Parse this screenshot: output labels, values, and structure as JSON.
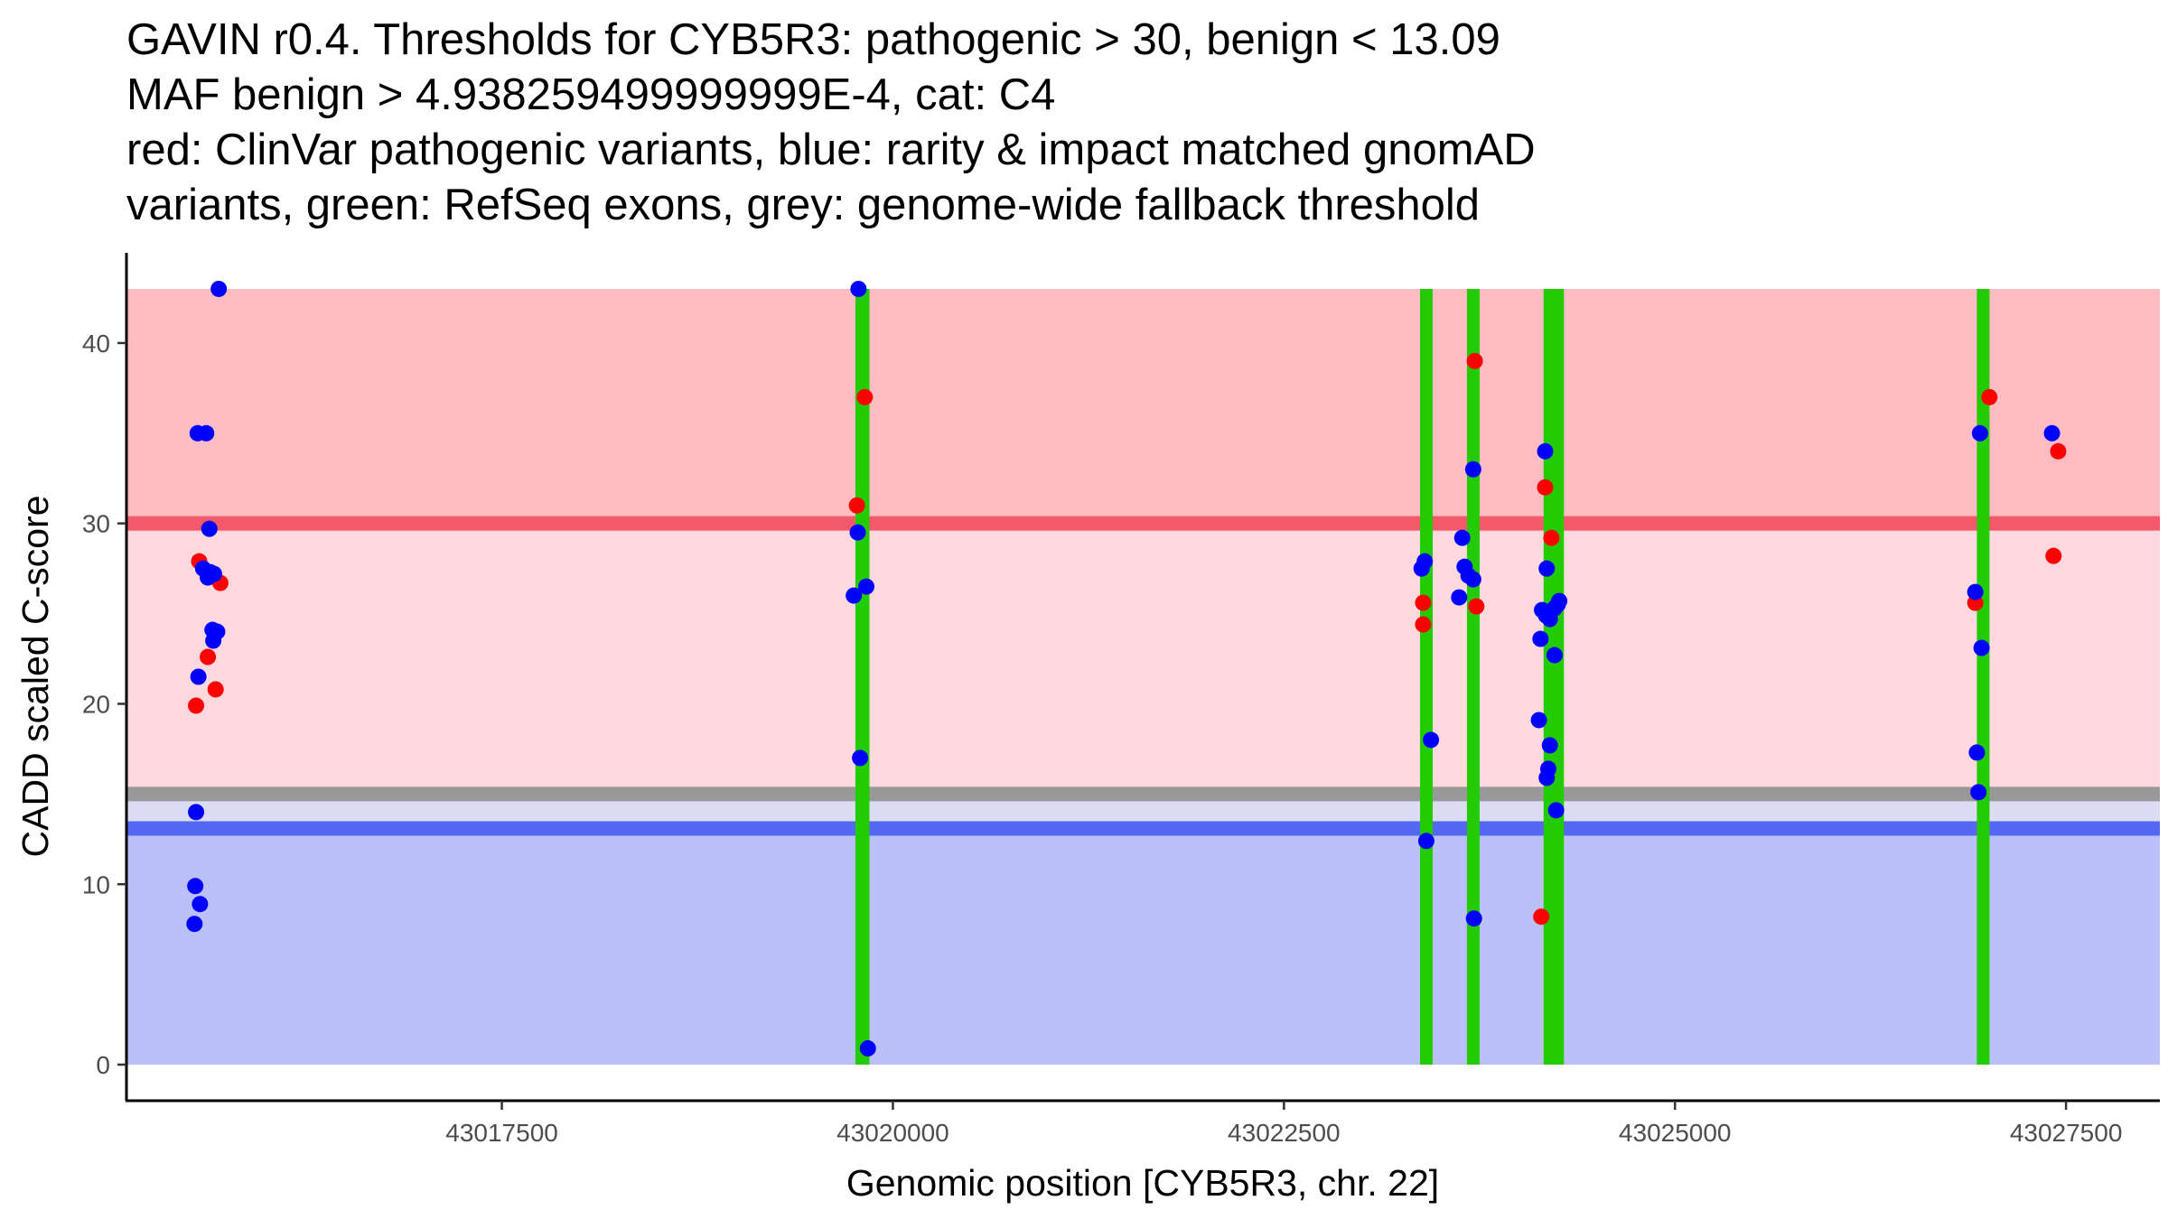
{
  "chart_data": {
    "type": "scatter",
    "title_lines": [
      "GAVIN r0.4. Thresholds for CYB5R3: pathogenic > 30, benign < 13.09",
      "MAF benign > 4.938259499999999E-4, cat: C4",
      "red: ClinVar pathogenic variants, blue: rarity & impact matched gnomAD",
      "variants, green: RefSeq exons, grey: genome-wide fallback threshold"
    ],
    "xlabel": "Genomic position [CYB5R3, chr. 22]",
    "ylabel": "CADD scaled C-score",
    "xlim": [
      43015100,
      43028100
    ],
    "ylim": [
      -2,
      45
    ],
    "x_ticks": [
      43017500,
      43020000,
      43022500,
      43025000,
      43027500
    ],
    "x_tick_labels": [
      "43017500",
      "43020000",
      "43022500",
      "43025000",
      "43027500"
    ],
    "y_ticks": [
      0,
      10,
      20,
      30,
      40
    ],
    "y_tick_labels": [
      "0",
      "10",
      "20",
      "30",
      "40"
    ],
    "thresholds": {
      "pathogenic": 30,
      "benign": 13.09,
      "genome_wide_fallback": 15
    },
    "bands": [
      {
        "name": "pathogenic-zone",
        "y0": 30,
        "y1": 43,
        "color": "#ffbcc2"
      },
      {
        "name": "intermediate-zone",
        "y0": 15,
        "y1": 30,
        "color": "#ffd9de"
      },
      {
        "name": "fallback-gap-zone",
        "y0": 13.09,
        "y1": 15,
        "color": "#dcdcf5"
      },
      {
        "name": "benign-zone",
        "y0": 0,
        "y1": 13.09,
        "color": "#bbc0fb"
      }
    ],
    "threshold_lines": [
      {
        "name": "pathogenic-threshold-line",
        "y": 30,
        "color": "#f4596a"
      },
      {
        "name": "fallback-threshold-line",
        "y": 15,
        "color": "#999999"
      },
      {
        "name": "benign-threshold-line",
        "y": 13.09,
        "color": "#5468f4"
      }
    ],
    "exons": [
      {
        "start": 43019760,
        "end": 43019850
      },
      {
        "start": 43023370,
        "end": 43023450
      },
      {
        "start": 43023670,
        "end": 43023750
      },
      {
        "start": 43024160,
        "end": 43024290
      },
      {
        "start": 43026930,
        "end": 43027010
      }
    ],
    "colors": {
      "clinvar": "#ff0000",
      "gnomad": "#0000ff",
      "exon": "#22cc00"
    },
    "series": [
      {
        "name": "ClinVar pathogenic",
        "x": [
          43015545,
          43015565,
          43015620,
          43015670,
          43015700,
          43019770,
          43019820,
          43023390,
          43023390,
          43023720,
          43023730,
          43024145,
          43024170,
          43024210,
          43026920,
          43027010,
          43027420,
          43027450
        ],
        "y": [
          19.9,
          27.9,
          22.6,
          20.8,
          26.7,
          31,
          37,
          25.6,
          24.4,
          39,
          25.4,
          8.2,
          32,
          29.2,
          25.6,
          37,
          28.2,
          34
        ]
      },
      {
        "name": "gnomAD matched",
        "x": [
          43015690,
          43015555,
          43015610,
          43015630,
          43015635,
          43015590,
          43015620,
          43015660,
          43015650,
          43015680,
          43015655,
          43015560,
          43015545,
          43015540,
          43015570,
          43015535,
          43019780,
          43019775,
          43019750,
          43019830,
          43019790,
          43019840,
          43023380,
          43023400,
          43023440,
          43023410,
          43023640,
          43023710,
          43023655,
          43023680,
          43023710,
          43023620,
          43023715,
          43024170,
          43024180,
          43024150,
          43024175,
          43024200,
          43024230,
          43024260,
          43024250,
          43024140,
          43024130,
          43024200,
          43024190,
          43024230,
          43024240,
          43024180,
          43026920,
          43026950,
          43026930,
          43026960,
          43026940,
          43027410
        ],
        "y": [
          43,
          35,
          35,
          29.7,
          27.3,
          27.5,
          27,
          27.2,
          24.1,
          24,
          23.5,
          21.5,
          14,
          9.9,
          8.9,
          7.8,
          43,
          29.5,
          26,
          26.5,
          17,
          0.9,
          27.5,
          27.9,
          18,
          12.4,
          29.2,
          26.9,
          27.6,
          27.1,
          33,
          25.9,
          8.1,
          34,
          27.5,
          25.2,
          24.9,
          24.7,
          25.3,
          25.7,
          25.5,
          23.6,
          19.1,
          17.7,
          16.4,
          22.7,
          14.1,
          15.9,
          26.2,
          35,
          17.3,
          23.1,
          15.1,
          35
        ]
      }
    ]
  }
}
